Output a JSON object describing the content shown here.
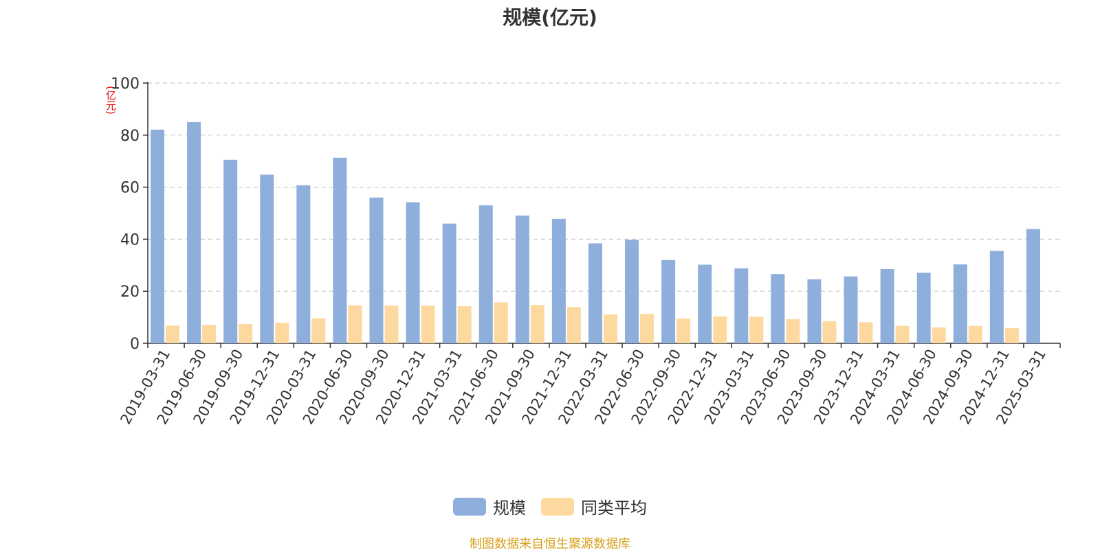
{
  "chart_data": {
    "type": "bar",
    "title": "规模(亿元)",
    "ylabel": "(亿元)",
    "xlabel": "",
    "ylim": [
      0,
      100
    ],
    "yticks": [
      0,
      20,
      40,
      60,
      80,
      100
    ],
    "grid": true,
    "legend_position": "bottom",
    "categories": [
      "2019-03-31",
      "2019-06-30",
      "2019-09-30",
      "2019-12-31",
      "2020-03-31",
      "2020-06-30",
      "2020-09-30",
      "2020-12-31",
      "2021-03-31",
      "2021-06-30",
      "2021-09-30",
      "2021-12-31",
      "2022-03-31",
      "2022-06-30",
      "2022-09-30",
      "2022-12-31",
      "2023-03-31",
      "2023-06-30",
      "2023-09-30",
      "2023-12-31",
      "2024-03-31",
      "2024-06-30",
      "2024-09-30",
      "2024-12-31",
      "2025-03-31"
    ],
    "series": [
      {
        "name": "规模",
        "color": "#8eaedb",
        "values": [
          82.1,
          85.0,
          70.5,
          64.8,
          60.7,
          71.3,
          56.0,
          54.2,
          46.0,
          53.0,
          49.1,
          47.8,
          38.4,
          39.8,
          32.0,
          30.2,
          28.8,
          26.6,
          24.6,
          25.7,
          28.5,
          27.1,
          30.3,
          35.5,
          43.9
        ]
      },
      {
        "name": "同类平均",
        "color": "#fdd9a0",
        "values": [
          6.8,
          7.1,
          7.4,
          7.9,
          9.6,
          14.6,
          14.5,
          14.5,
          14.3,
          15.7,
          14.7,
          13.9,
          11.1,
          11.3,
          9.5,
          10.3,
          10.2,
          9.3,
          8.5,
          8.1,
          6.7,
          6.1,
          6.7,
          5.8,
          null
        ]
      }
    ]
  },
  "source_text": "制图数据来自恒生聚源数据库",
  "source_color": "#d4a017"
}
